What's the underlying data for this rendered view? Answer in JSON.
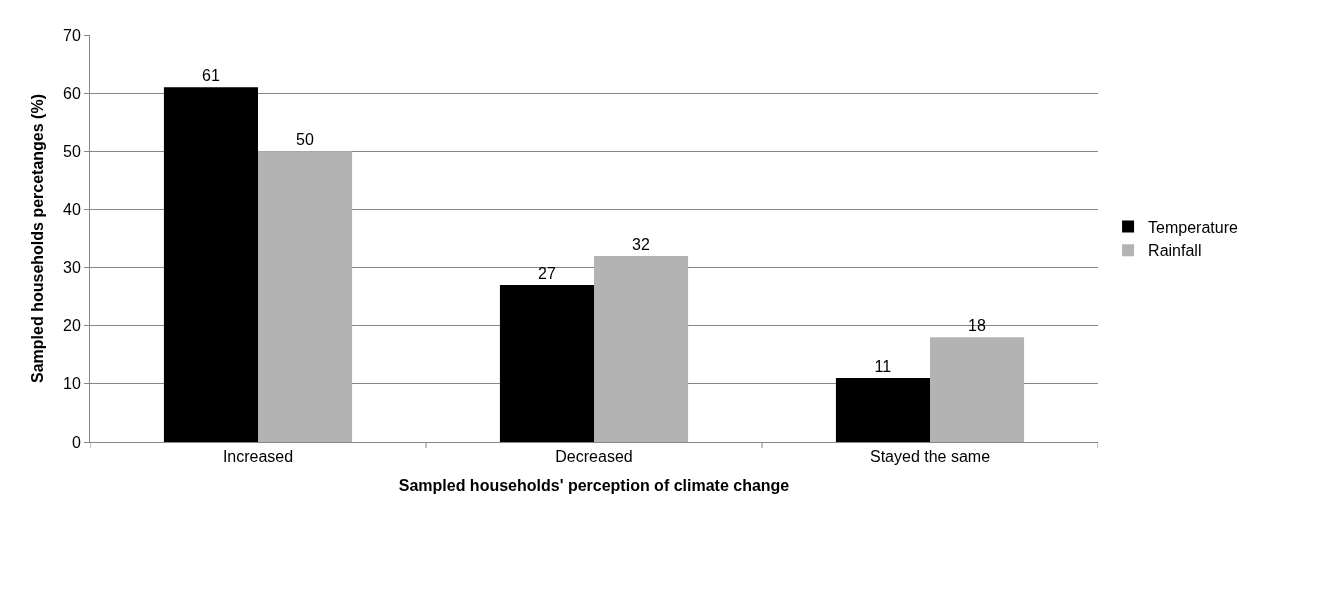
{
  "chart_data": {
    "type": "bar",
    "xlabel": "Sampled households' perception of climate change",
    "ylabel": "Sampled households percetanges (%)",
    "categories": [
      "Increased",
      "Decreased",
      "Stayed the same"
    ],
    "series": [
      {
        "name": "Temperature",
        "color": "#000000",
        "values": [
          61,
          27,
          11
        ]
      },
      {
        "name": "Rainfall",
        "color": "#b3b3b3",
        "values": [
          50,
          32,
          18
        ]
      }
    ],
    "ylim": [
      0,
      70
    ],
    "yticks": [
      0,
      10,
      20,
      30,
      40,
      50,
      60,
      70
    ],
    "grid": "y",
    "legend": "right",
    "data_labels": true
  }
}
